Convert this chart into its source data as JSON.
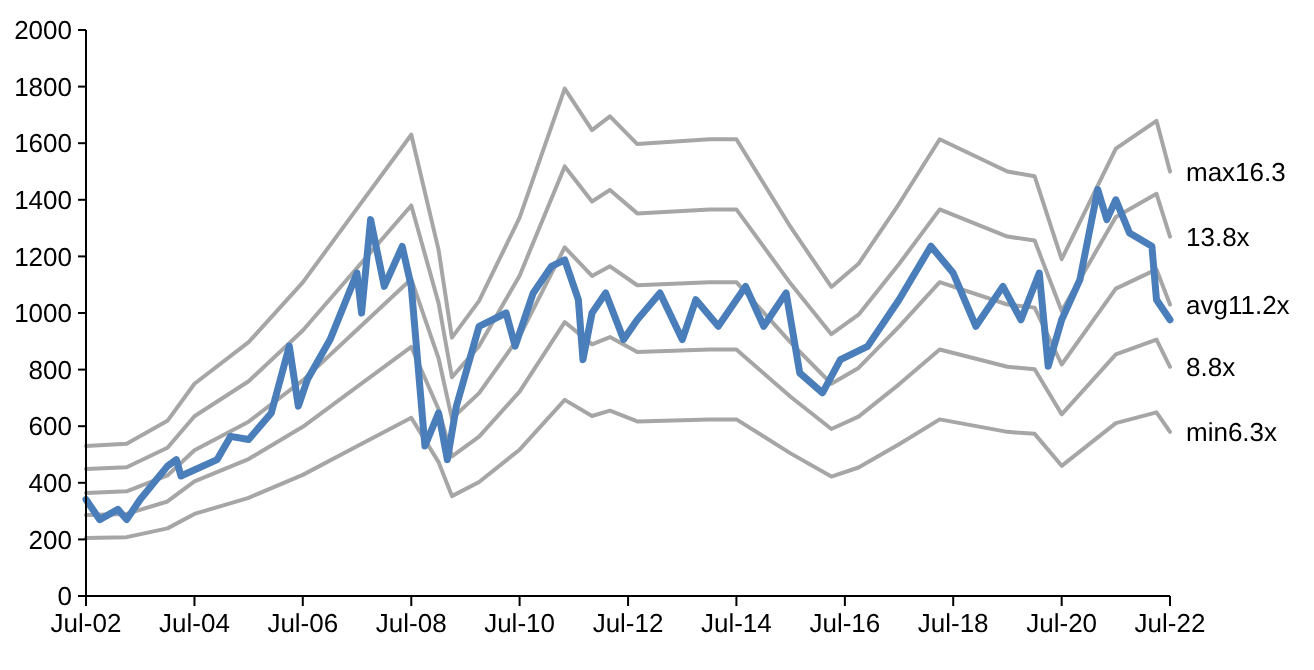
{
  "chart_data": {
    "type": "line",
    "x": [
      "2002-07",
      "2003-04",
      "2004-01",
      "2004-07",
      "2005-07",
      "2006-07",
      "2007-07",
      "2008-07",
      "2009-01",
      "2009-04",
      "2009-10",
      "2010-07",
      "2011-05",
      "2011-11",
      "2012-03",
      "2012-09",
      "2014-01",
      "2014-07",
      "2015-07",
      "2016-04",
      "2016-10",
      "2017-07",
      "2018-04",
      "2019-07",
      "2020-01",
      "2020-07",
      "2021-07",
      "2022-04",
      "2022-07"
    ],
    "series": [
      {
        "name": "max16.3",
        "color": "#a6a6a6",
        "values": [
          530,
          538,
          619,
          750,
          897,
          1108,
          1369,
          1630,
          1223,
          913,
          1043,
          1337,
          1793,
          1646,
          1695,
          1597,
          1614,
          1614,
          1304,
          1092,
          1174,
          1386,
          1614,
          1500,
          1483,
          1190,
          1581,
          1679,
          1500
        ]
      },
      {
        "name": "13.8x",
        "color": "#a6a6a6",
        "values": [
          449,
          455,
          524,
          635,
          759,
          938,
          1159,
          1380,
          1035,
          773,
          883,
          1132,
          1518,
          1394,
          1435,
          1352,
          1366,
          1366,
          1104,
          925,
          994,
          1173,
          1366,
          1270,
          1256,
          1007,
          1339,
          1421,
          1270
        ]
      },
      {
        "name": "avg11.2x",
        "color": "#a6a6a6",
        "values": [
          364,
          370,
          426,
          515,
          616,
          762,
          941,
          1120,
          840,
          627,
          717,
          918,
          1232,
          1131,
          1165,
          1098,
          1109,
          1109,
          896,
          750,
          806,
          952,
          1109,
          1030,
          1019,
          818,
          1086,
          1154,
          1030
        ]
      },
      {
        "name": "8.8x",
        "color": "#a6a6a6",
        "values": [
          286,
          290,
          334,
          405,
          484,
          598,
          739,
          880,
          660,
          493,
          563,
          722,
          968,
          889,
          915,
          862,
          871,
          871,
          704,
          590,
          634,
          748,
          871,
          810,
          801,
          642,
          854,
          906,
          810
        ]
      },
      {
        "name": "min6.3x",
        "color": "#a6a6a6",
        "values": [
          205,
          208,
          239,
          290,
          347,
          428,
          529,
          630,
          473,
          353,
          403,
          517,
          693,
          636,
          655,
          617,
          624,
          624,
          504,
          422,
          454,
          536,
          624,
          580,
          573,
          460,
          611,
          649,
          580
        ]
      },
      {
        "color": "#4a7ebb",
        "x": [
          "2002-07",
          "2002-10",
          "2003-02",
          "2003-04",
          "2003-07",
          "2004-01",
          "2004-03",
          "2004-04",
          "2004-12",
          "2005-03",
          "2005-07",
          "2005-12",
          "2006-04",
          "2006-06",
          "2006-08",
          "2007-01",
          "2007-07",
          "2007-08",
          "2007-10",
          "2008-01",
          "2008-05",
          "2008-07",
          "2008-10",
          "2009-01",
          "2009-03",
          "2009-05",
          "2009-10",
          "2010-04",
          "2010-06",
          "2010-10",
          "2011-02",
          "2011-05",
          "2011-08",
          "2011-09",
          "2011-11",
          "2012-02",
          "2012-06",
          "2012-09",
          "2013-02",
          "2013-07",
          "2013-10",
          "2014-03",
          "2014-09",
          "2015-01",
          "2015-06",
          "2015-09",
          "2016-02",
          "2016-06",
          "2016-12",
          "2017-07",
          "2018-02",
          "2018-07",
          "2018-12",
          "2019-06",
          "2019-10",
          "2020-02",
          "2020-04",
          "2020-07",
          "2020-11",
          "2021-03",
          "2021-05",
          "2021-07",
          "2021-10",
          "2022-03",
          "2022-04",
          "2022-07"
        ],
        "values": [
          341,
          270,
          306,
          270,
          341,
          459,
          482,
          424,
          482,
          564,
          553,
          647,
          883,
          671,
          765,
          906,
          1141,
          1000,
          1330,
          1094,
          1235,
          1094,
          530,
          647,
          482,
          671,
          953,
          1000,
          883,
          1071,
          1165,
          1188,
          1047,
          835,
          1000,
          1071,
          906,
          976,
          1071,
          906,
          1047,
          953,
          1094,
          953,
          1071,
          788,
          718,
          835,
          882,
          1047,
          1236,
          1141,
          953,
          1094,
          976,
          1141,
          812,
          976,
          1118,
          1436,
          1330,
          1400,
          1283,
          1236,
          1047,
          976
        ]
      }
    ],
    "xlim": [
      "2002-07",
      "2022-07"
    ],
    "xticks": [
      {
        "value": "2002-07",
        "label": "Jul-02"
      },
      {
        "value": "2004-07",
        "label": "Jul-04"
      },
      {
        "value": "2006-07",
        "label": "Jul-06"
      },
      {
        "value": "2008-07",
        "label": "Jul-08"
      },
      {
        "value": "2010-07",
        "label": "Jul-10"
      },
      {
        "value": "2012-07",
        "label": "Jul-12"
      },
      {
        "value": "2014-07",
        "label": "Jul-14"
      },
      {
        "value": "2016-07",
        "label": "Jul-16"
      },
      {
        "value": "2018-07",
        "label": "Jul-18"
      },
      {
        "value": "2020-07",
        "label": "Jul-20"
      },
      {
        "value": "2022-07",
        "label": "Jul-22"
      }
    ],
    "ylim": [
      0,
      2000
    ],
    "yticks": [
      0,
      200,
      400,
      600,
      800,
      1000,
      1200,
      1400,
      1600,
      1800,
      2000
    ],
    "grid": false,
    "legend": false
  }
}
